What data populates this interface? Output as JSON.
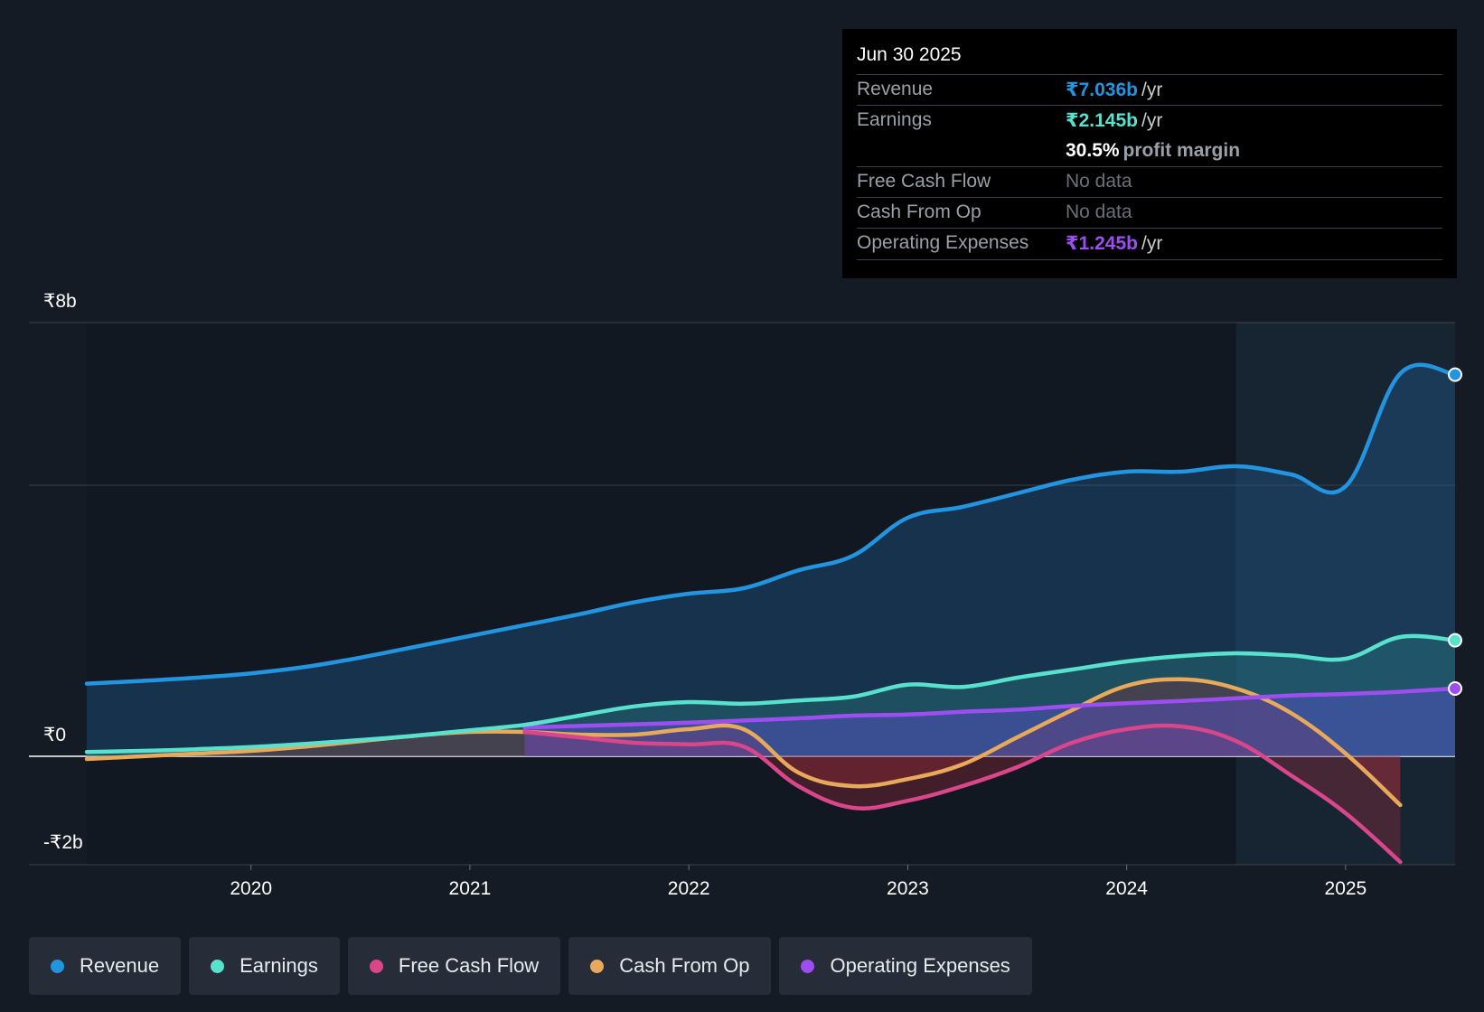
{
  "colors": {
    "revenue": "#2394df",
    "earnings": "#58e1cd",
    "free_cash_flow": "#d9468a",
    "cash_from_op": "#e8a95a",
    "operating_expenses": "#9d4ef0",
    "background": "#151b24"
  },
  "tooltip": {
    "date": "Jun 30 2025",
    "rows": {
      "revenue": {
        "label": "Revenue",
        "value": "₹7.036b",
        "unit": "/yr"
      },
      "earnings": {
        "label": "Earnings",
        "value": "₹2.145b",
        "unit": "/yr"
      },
      "margin": {
        "value": "30.5%",
        "label": "profit margin"
      },
      "fcf": {
        "label": "Free Cash Flow",
        "value": "No data"
      },
      "cfo": {
        "label": "Cash From Op",
        "value": "No data"
      },
      "opex": {
        "label": "Operating Expenses",
        "value": "₹1.245b",
        "unit": "/yr"
      }
    }
  },
  "legend": [
    {
      "key": "revenue",
      "label": "Revenue"
    },
    {
      "key": "earnings",
      "label": "Earnings"
    },
    {
      "key": "free_cash_flow",
      "label": "Free Cash Flow"
    },
    {
      "key": "cash_from_op",
      "label": "Cash From Op"
    },
    {
      "key": "operating_expenses",
      "label": "Operating Expenses"
    }
  ],
  "chart_data": {
    "type": "area",
    "title": "",
    "xlabel": "",
    "ylabel": "",
    "xlim": [
      2019.25,
      2025.5
    ],
    "ylim": [
      -2.0,
      8.0
    ],
    "y_tick_labels": [
      {
        "value": 8,
        "label": "₹8b"
      },
      {
        "value": 0,
        "label": "₹0"
      },
      {
        "value": -2,
        "label": "-₹2b"
      }
    ],
    "gridlines": [
      8,
      5,
      0,
      -2
    ],
    "x_ticks": [
      {
        "value": 2020,
        "label": "2020"
      },
      {
        "value": 2021,
        "label": "2021"
      },
      {
        "value": 2022,
        "label": "2022"
      },
      {
        "value": 2023,
        "label": "2023"
      },
      {
        "value": 2024,
        "label": "2024"
      },
      {
        "value": 2025,
        "label": "2025"
      }
    ],
    "highlight_from": 2024.5,
    "series": [
      {
        "key": "revenue",
        "name": "Revenue",
        "x": [
          2019.25,
          2019.5,
          2019.75,
          2020.0,
          2020.25,
          2020.5,
          2020.75,
          2021.0,
          2021.25,
          2021.5,
          2021.75,
          2022.0,
          2022.25,
          2022.5,
          2022.75,
          2023.0,
          2023.25,
          2023.5,
          2023.75,
          2024.0,
          2024.25,
          2024.5,
          2024.75,
          2025.0,
          2025.25,
          2025.5
        ],
        "values": [
          1.34,
          1.39,
          1.45,
          1.53,
          1.65,
          1.82,
          2.02,
          2.22,
          2.42,
          2.62,
          2.84,
          3.0,
          3.1,
          3.43,
          3.7,
          4.4,
          4.6,
          4.85,
          5.1,
          5.25,
          5.25,
          5.35,
          5.2,
          4.98,
          7.06,
          7.04
        ],
        "end_marker": true
      },
      {
        "key": "earnings",
        "name": "Earnings",
        "x": [
          2019.25,
          2019.5,
          2019.75,
          2020.0,
          2020.25,
          2020.5,
          2020.75,
          2021.0,
          2021.25,
          2021.5,
          2021.75,
          2022.0,
          2022.25,
          2022.5,
          2022.75,
          2023.0,
          2023.25,
          2023.5,
          2023.75,
          2024.0,
          2024.25,
          2024.5,
          2024.75,
          2025.0,
          2025.25,
          2025.5
        ],
        "values": [
          0.08,
          0.1,
          0.13,
          0.17,
          0.23,
          0.3,
          0.38,
          0.48,
          0.58,
          0.75,
          0.92,
          1.0,
          0.97,
          1.03,
          1.1,
          1.32,
          1.28,
          1.45,
          1.6,
          1.75,
          1.85,
          1.9,
          1.86,
          1.8,
          2.2,
          2.14
        ],
        "end_marker": true
      },
      {
        "key": "free_cash_flow",
        "name": "Free Cash Flow",
        "x": [
          2021.25,
          2021.5,
          2021.75,
          2022.0,
          2022.25,
          2022.5,
          2022.75,
          2023.0,
          2023.25,
          2023.5,
          2023.75,
          2024.0,
          2024.25,
          2024.5,
          2024.75,
          2025.0,
          2025.25
        ],
        "values": [
          0.45,
          0.35,
          0.25,
          0.22,
          0.18,
          -0.55,
          -0.95,
          -0.82,
          -0.55,
          -0.2,
          0.25,
          0.5,
          0.55,
          0.28,
          -0.35,
          -1.05,
          -1.95
        ],
        "end_marker": false
      },
      {
        "key": "cash_from_op",
        "name": "Cash From Op",
        "x": [
          2019.25,
          2019.5,
          2019.75,
          2020.0,
          2020.25,
          2020.5,
          2020.75,
          2021.0,
          2021.25,
          2021.5,
          2021.75,
          2022.0,
          2022.25,
          2022.5,
          2022.75,
          2023.0,
          2023.25,
          2023.5,
          2023.75,
          2024.0,
          2024.25,
          2024.5,
          2024.75,
          2025.0,
          2025.25
        ],
        "values": [
          -0.05,
          0.0,
          0.05,
          0.1,
          0.18,
          0.28,
          0.38,
          0.45,
          0.45,
          0.4,
          0.4,
          0.5,
          0.5,
          -0.3,
          -0.55,
          -0.42,
          -0.15,
          0.35,
          0.85,
          1.3,
          1.42,
          1.25,
          0.8,
          0.05,
          -0.9
        ],
        "end_marker": false
      },
      {
        "key": "operating_expenses",
        "name": "Operating Expenses",
        "x": [
          2021.25,
          2021.5,
          2021.75,
          2022.0,
          2022.25,
          2022.5,
          2022.75,
          2023.0,
          2023.25,
          2023.5,
          2023.75,
          2024.0,
          2024.25,
          2024.5,
          2024.75,
          2025.0,
          2025.25,
          2025.5
        ],
        "values": [
          0.53,
          0.56,
          0.59,
          0.62,
          0.66,
          0.7,
          0.75,
          0.77,
          0.82,
          0.86,
          0.93,
          0.98,
          1.02,
          1.07,
          1.12,
          1.15,
          1.19,
          1.25
        ],
        "end_marker": true
      }
    ]
  }
}
